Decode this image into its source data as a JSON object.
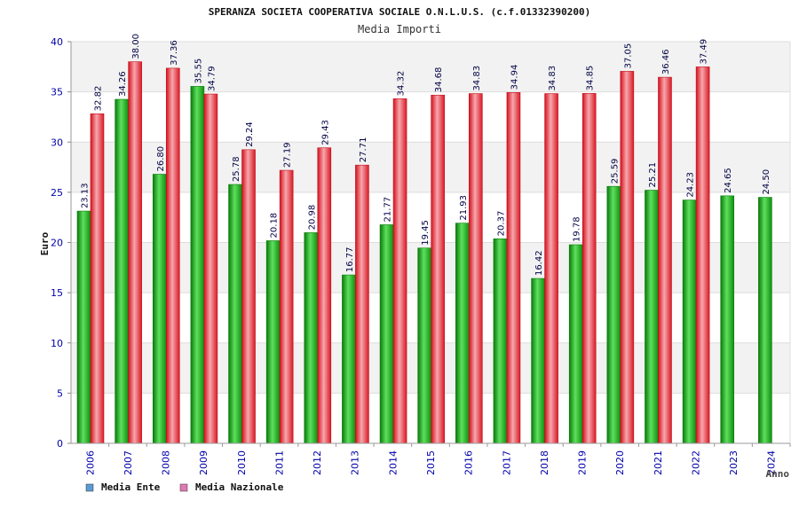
{
  "chart_data": {
    "type": "bar",
    "title": "SPERANZA SOCIETA COOPERATIVA SOCIALE O.N.L.U.S. (c.f.01332390200)",
    "subtitle": "Media Importi",
    "xlabel": "Anno",
    "ylabel": "Euro",
    "ylim": [
      0,
      40
    ],
    "yticks": [
      0,
      5,
      10,
      15,
      20,
      25,
      30,
      35,
      40
    ],
    "categories": [
      "2006",
      "2007",
      "2008",
      "2009",
      "2010",
      "2011",
      "2012",
      "2013",
      "2014",
      "2015",
      "2016",
      "2017",
      "2018",
      "2019",
      "2020",
      "2021",
      "2022",
      "2023",
      "2024"
    ],
    "series": [
      {
        "name": "Media Ente",
        "values": [
          23.13,
          34.26,
          26.8,
          35.55,
          25.78,
          20.18,
          20.98,
          16.77,
          21.77,
          19.45,
          21.93,
          20.37,
          16.42,
          19.78,
          25.59,
          25.21,
          24.23,
          24.65,
          24.5
        ],
        "labels": [
          "23.13",
          "34.26",
          "26.80",
          "35.55",
          "25.78",
          "20.18",
          "20.98",
          "16.77",
          "21.77",
          "19.45",
          "21.93",
          "20.37",
          "16.42",
          "19.78",
          "25.59",
          "25.21",
          "24.23",
          "24.65",
          "24.50"
        ]
      },
      {
        "name": "Media Nazionale",
        "values": [
          32.82,
          38.0,
          37.36,
          34.79,
          29.24,
          27.19,
          29.43,
          27.71,
          34.32,
          34.68,
          34.83,
          34.94,
          34.83,
          34.85,
          37.05,
          36.46,
          37.49,
          null,
          null
        ],
        "labels": [
          "32.82",
          "38.00",
          "37.36",
          "34.79",
          "29.24",
          "27.19",
          "29.43",
          "27.71",
          "34.32",
          "34.68",
          "34.83",
          "34.94",
          "34.83",
          "34.85",
          "37.05",
          "36.46",
          "37.49",
          null,
          null
        ]
      }
    ],
    "legend": {
      "placement": "bottom-left",
      "items": [
        {
          "label": "Media Ente",
          "color": "#5b9bd5"
        },
        {
          "label": "Media Nazionale",
          "color": "#e07ab0"
        }
      ]
    },
    "colors": {
      "ente_bar": "#17b617",
      "naz_bar": "#e8222e",
      "axis_text": "#0000aa",
      "band": "#f2f2f2"
    }
  }
}
